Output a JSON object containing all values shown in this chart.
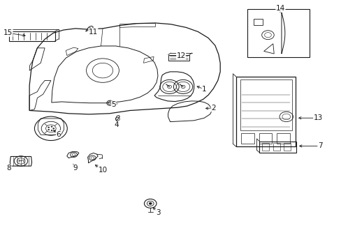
{
  "bg_color": "#ffffff",
  "line_color": "#1a1a1a",
  "fig_width": 4.89,
  "fig_height": 3.6,
  "dpi": 100,
  "font_size": 7.5,
  "label_positions": {
    "1": [
      0.6,
      0.62,
      0.57,
      0.64
    ],
    "2": [
      0.6,
      0.555,
      0.57,
      0.54
    ],
    "3": [
      0.468,
      0.148,
      0.455,
      0.19
    ],
    "4": [
      0.34,
      0.49,
      0.338,
      0.52
    ],
    "5": [
      0.34,
      0.58,
      0.33,
      0.592
    ],
    "6": [
      0.172,
      0.478,
      0.168,
      0.52
    ],
    "7": [
      0.935,
      0.42,
      0.89,
      0.422
    ],
    "8": [
      0.022,
      0.33,
      0.058,
      0.355
    ],
    "9": [
      0.218,
      0.33,
      0.208,
      0.358
    ],
    "10": [
      0.295,
      0.318,
      0.278,
      0.348
    ],
    "11": [
      0.272,
      0.87,
      0.258,
      0.875
    ],
    "12": [
      0.525,
      0.78,
      0.51,
      0.76
    ],
    "13": [
      0.925,
      0.53,
      0.882,
      0.53
    ],
    "14": [
      0.82,
      0.965,
      0.82,
      0.94
    ],
    "15": [
      0.02,
      0.868,
      0.075,
      0.858
    ]
  }
}
